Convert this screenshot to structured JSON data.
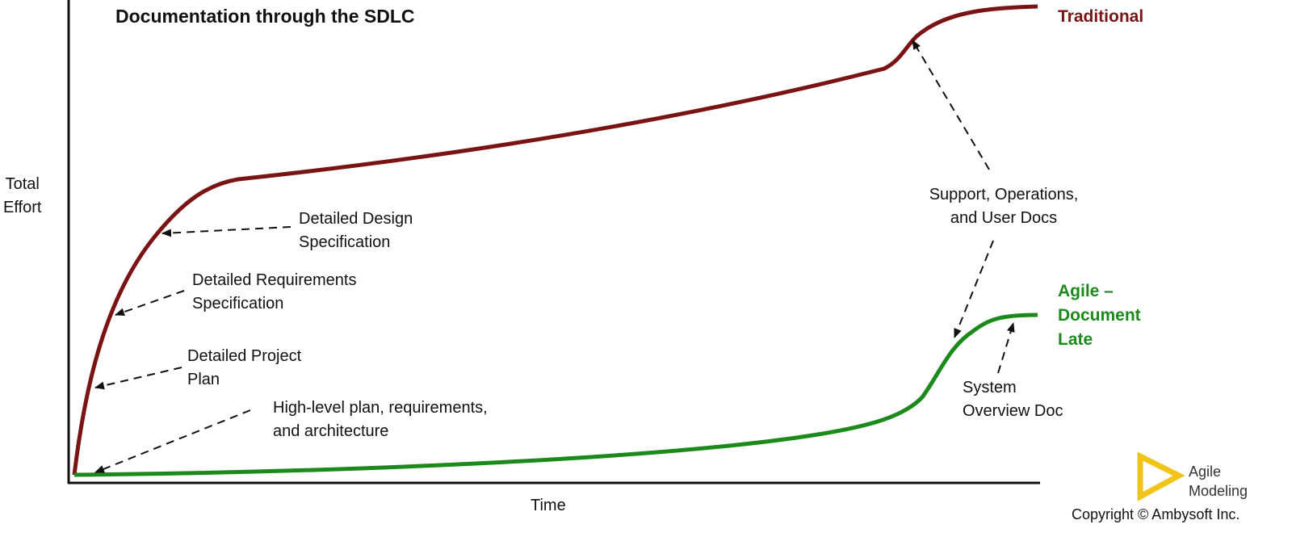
{
  "title": "Documentation through the SDLC",
  "y_axis_label": [
    "Total",
    "Effort"
  ],
  "x_axis_label": "Time",
  "series": [
    {
      "name": "Traditional",
      "color": "#7a1414"
    },
    {
      "name_lines": [
        "Agile –",
        "Document",
        "Late"
      ],
      "color": "#1b8a1b"
    }
  ],
  "annotations": {
    "design": [
      "Detailed Design",
      "Specification"
    ],
    "requirements": [
      "Detailed Requirements",
      "Specification"
    ],
    "project_plan": [
      "Detailed Project",
      "Plan"
    ],
    "high_level": [
      "High-level plan, requirements,",
      "and architecture"
    ],
    "support": [
      "Support, Operations,",
      "and User Docs"
    ],
    "system_overview": [
      "System",
      "Overview Doc"
    ]
  },
  "logo": {
    "text_lines": [
      "Agile",
      "Modeling"
    ],
    "color": "#f2c418"
  },
  "copyright": "Copyright © Ambysoft Inc."
}
